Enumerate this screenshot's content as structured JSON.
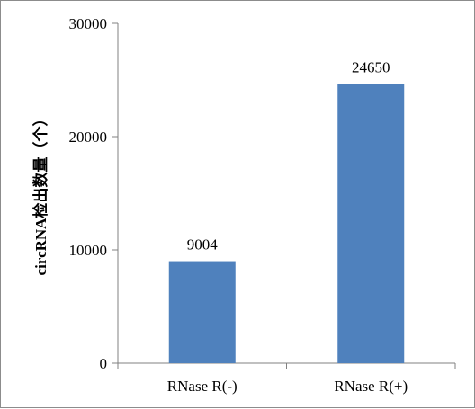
{
  "chart_data": {
    "type": "bar",
    "title": "",
    "xlabel": "",
    "ylabel": "circRNA检出数量（个）",
    "categories": [
      "RNase R(-)",
      "RNase R(+)"
    ],
    "values": [
      9004,
      24650
    ],
    "data_labels": [
      "9004",
      "24650"
    ],
    "ylim": [
      0,
      30000
    ],
    "yticks": [
      0,
      10000,
      20000,
      30000
    ],
    "ytick_labels": [
      "0",
      "10000",
      "20000",
      "30000"
    ],
    "bar_color": "#4f81bd",
    "axis_color": "#808080",
    "grid": false,
    "legend": "none"
  }
}
